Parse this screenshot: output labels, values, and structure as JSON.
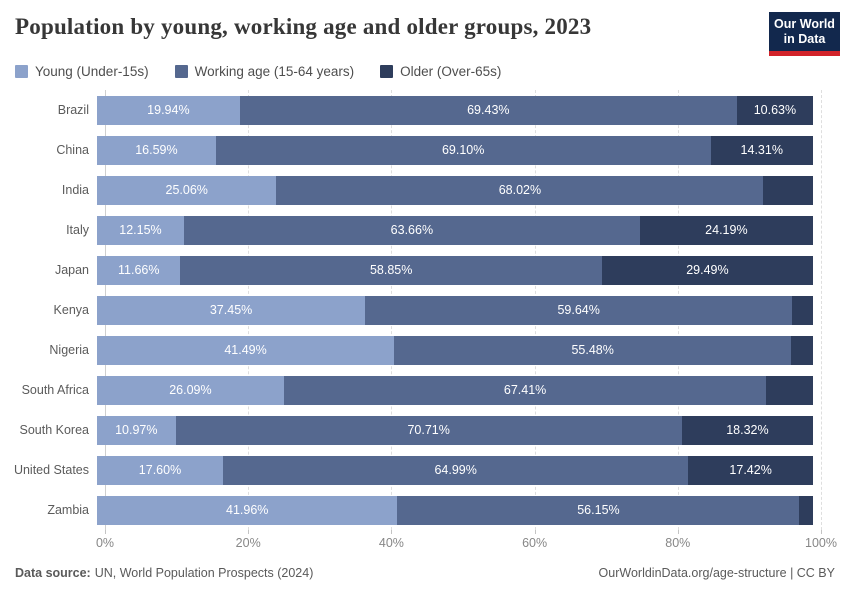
{
  "chart_data": {
    "type": "bar",
    "stacked": true,
    "orientation": "horizontal",
    "title": "Population by young, working age and older groups, 2023",
    "xlabel": "",
    "ylabel": "",
    "xlim": [
      0,
      100
    ],
    "grid": "vertical-dashed",
    "legend_position": "top-left",
    "tick_values": [
      0,
      20,
      40,
      60,
      80,
      100
    ],
    "tick_labels": [
      "0%",
      "20%",
      "40%",
      "60%",
      "80%",
      "100%"
    ],
    "series": [
      {
        "name": "Young (Under-15s)",
        "color": "#8ca2cb"
      },
      {
        "name": "Working age (15-64 years)",
        "color": "#55688f"
      },
      {
        "name": "Older (Over-65s)",
        "color": "#2e3d5c"
      }
    ],
    "categories": [
      "Brazil",
      "China",
      "India",
      "Italy",
      "Japan",
      "Kenya",
      "Nigeria",
      "South Africa",
      "South Korea",
      "United States",
      "Zambia"
    ],
    "rows": [
      {
        "country": "Brazil",
        "values": [
          19.94,
          69.43,
          10.63
        ],
        "labels": [
          "19.94%",
          "69.43%",
          "10.63%"
        ]
      },
      {
        "country": "China",
        "values": [
          16.59,
          69.1,
          14.31
        ],
        "labels": [
          "16.59%",
          "69.10%",
          "14.31%"
        ]
      },
      {
        "country": "India",
        "values": [
          25.06,
          68.02,
          6.92
        ],
        "labels": [
          "25.06%",
          "68.02%",
          null
        ]
      },
      {
        "country": "Italy",
        "values": [
          12.15,
          63.66,
          24.19
        ],
        "labels": [
          "12.15%",
          "63.66%",
          "24.19%"
        ]
      },
      {
        "country": "Japan",
        "values": [
          11.66,
          58.85,
          29.49
        ],
        "labels": [
          "11.66%",
          "58.85%",
          "29.49%"
        ]
      },
      {
        "country": "Kenya",
        "values": [
          37.45,
          59.64,
          2.91
        ],
        "labels": [
          "37.45%",
          "59.64%",
          null
        ]
      },
      {
        "country": "Nigeria",
        "values": [
          41.49,
          55.48,
          3.03
        ],
        "labels": [
          "41.49%",
          "55.48%",
          null
        ]
      },
      {
        "country": "South Africa",
        "values": [
          26.09,
          67.41,
          6.5
        ],
        "labels": [
          "26.09%",
          "67.41%",
          null
        ]
      },
      {
        "country": "South Korea",
        "values": [
          10.97,
          70.71,
          18.32
        ],
        "labels": [
          "10.97%",
          "70.71%",
          "18.32%"
        ]
      },
      {
        "country": "United States",
        "values": [
          17.6,
          64.99,
          17.42
        ],
        "labels": [
          "17.60%",
          "64.99%",
          "17.42%"
        ]
      },
      {
        "country": "Zambia",
        "values": [
          41.96,
          56.15,
          1.89
        ],
        "labels": [
          "41.96%",
          "56.15%",
          null
        ]
      }
    ]
  },
  "logo": {
    "line1": "Our World",
    "line2": "in Data",
    "bg_color": "#12284d",
    "accent_color": "#d2232a"
  },
  "footer": {
    "source_label": "Data source:",
    "source_text": "UN, World Population Prospects (2024)",
    "credit": "OurWorldinData.org/age-structure | CC BY"
  }
}
